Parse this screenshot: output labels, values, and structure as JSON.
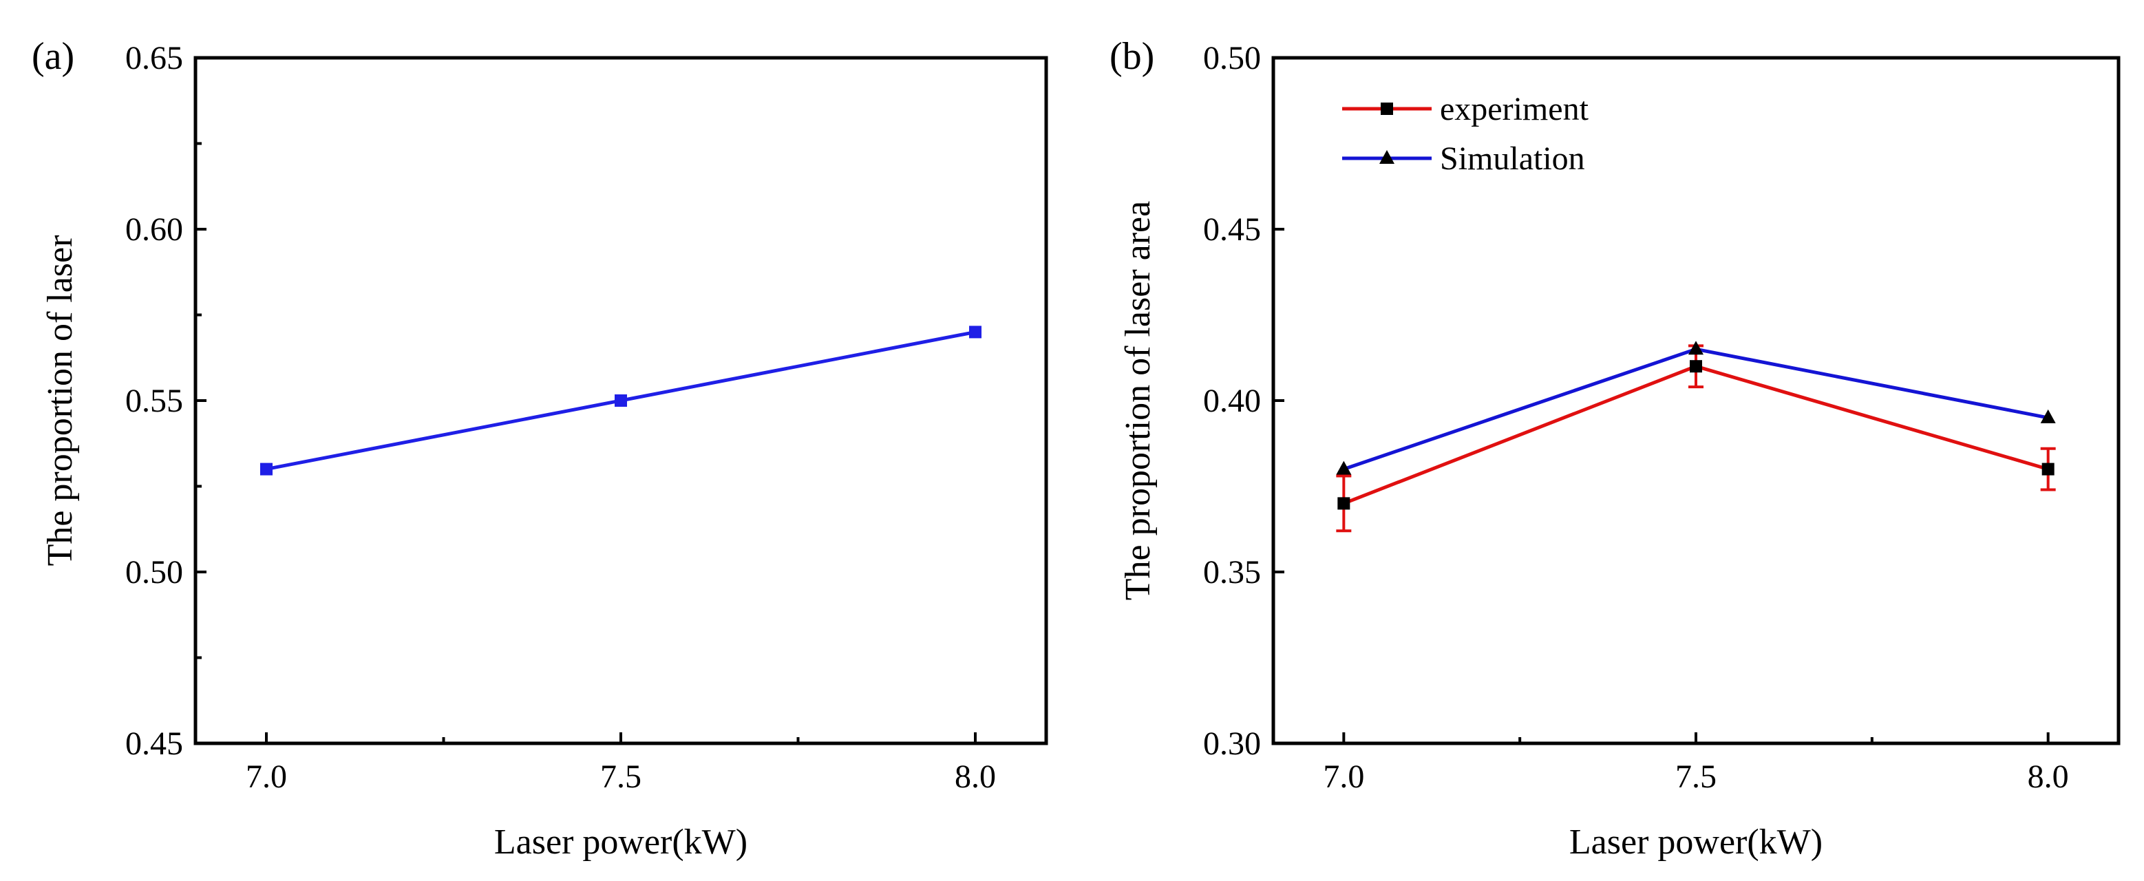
{
  "chart_data": [
    {
      "panel_label": "(a)",
      "type": "line",
      "xlabel": "Laser power(kW)",
      "ylabel": "The proportion of laser",
      "xlim": [
        6.9,
        8.1
      ],
      "ylim": [
        0.45,
        0.65
      ],
      "xticks": [
        "7.0",
        "7.5",
        "8.0"
      ],
      "yticks": [
        "0.45",
        "0.50",
        "0.55",
        "0.60",
        "0.65"
      ],
      "series": [
        {
          "name": "",
          "color": "#1f1fe6",
          "marker": "square",
          "x": [
            7.0,
            7.5,
            8.0
          ],
          "values": [
            0.53,
            0.55,
            0.57
          ]
        }
      ]
    },
    {
      "panel_label": "(b)",
      "type": "line",
      "xlabel": "Laser power(kW)",
      "ylabel": "The proportion of laser area",
      "xlim": [
        6.9,
        8.1
      ],
      "ylim": [
        0.3,
        0.5
      ],
      "xticks": [
        "7.0",
        "7.5",
        "8.0"
      ],
      "yticks": [
        "0.30",
        "0.35",
        "0.40",
        "0.45",
        "0.50"
      ],
      "legend_position": "top-left",
      "series": [
        {
          "name": "experiment",
          "color": "#e01010",
          "marker": "square",
          "x": [
            7.0,
            7.5,
            8.0
          ],
          "values": [
            0.37,
            0.41,
            0.38
          ],
          "errors": [
            0.008,
            0.006,
            0.006
          ]
        },
        {
          "name": "Simulation",
          "color": "#1414d4",
          "marker": "triangle",
          "x": [
            7.0,
            7.5,
            8.0
          ],
          "values": [
            0.38,
            0.415,
            0.395
          ]
        }
      ]
    }
  ]
}
